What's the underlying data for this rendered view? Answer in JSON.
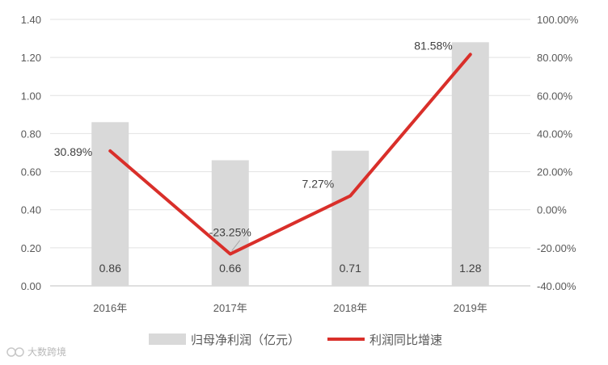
{
  "chart_data": {
    "type": "bar",
    "categories": [
      "2016年",
      "2017年",
      "2018年",
      "2019年"
    ],
    "series": [
      {
        "name": "归母净利润（亿元）",
        "type": "bar",
        "axis": "left",
        "color": "#d9d9d9",
        "values": [
          0.86,
          0.66,
          0.71,
          1.28
        ],
        "labels": [
          "0.86",
          "0.66",
          "0.71",
          "1.28"
        ]
      },
      {
        "name": "利润同比增速",
        "type": "line",
        "axis": "right",
        "color": "#d92f2a",
        "values": [
          30.89,
          -23.25,
          7.27,
          81.58
        ],
        "labels": [
          "30.89%",
          "-23.25%",
          "7.27%",
          "81.58%"
        ]
      }
    ],
    "y_left": {
      "min": 0,
      "max": 1.4,
      "ticks": [
        "0.00",
        "0.20",
        "0.40",
        "0.60",
        "0.80",
        "1.00",
        "1.20",
        "1.40"
      ]
    },
    "y_right": {
      "min": -40,
      "max": 100,
      "ticks": [
        "-40.00%",
        "-20.00%",
        "0.00%",
        "20.00%",
        "40.00%",
        "60.00%",
        "80.00%",
        "100.00%"
      ]
    },
    "grid": true,
    "legend_position": "bottom"
  },
  "watermark": "大数跨境"
}
